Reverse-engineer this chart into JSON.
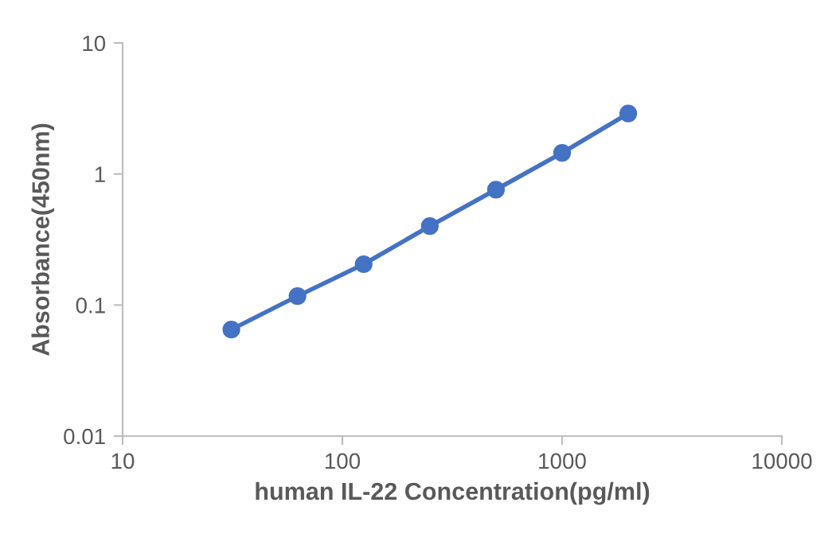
{
  "chart_data": {
    "type": "line",
    "xlabel": "human IL-22 Concentration(pg/ml)",
    "ylabel": "Absorbance(450nm)",
    "x": [
      31.25,
      62.5,
      125,
      250,
      500,
      1000,
      2000
    ],
    "series": [
      {
        "color": "#4472c4",
        "values": [
          0.065,
          0.117,
          0.205,
          0.4,
          0.76,
          1.45,
          2.9
        ]
      }
    ],
    "log": "xy",
    "xlim": [
      10,
      10000
    ],
    "ylim": [
      0.01,
      10
    ],
    "xticks": [
      10,
      100,
      1000,
      10000
    ],
    "yticks": [
      0.01,
      0.1,
      1,
      10
    ],
    "marker": "circle",
    "line_style": "solid",
    "grid": false
  }
}
